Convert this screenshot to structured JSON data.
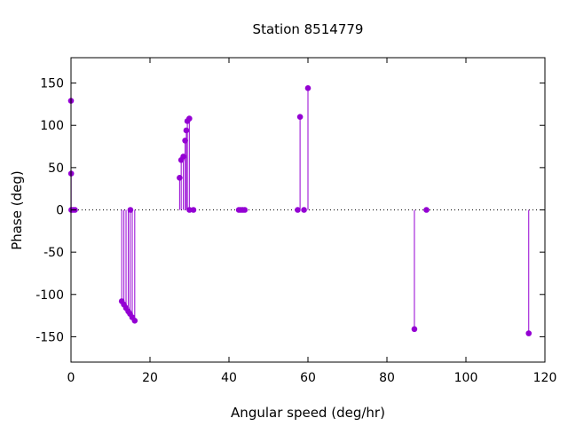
{
  "chart_data": {
    "type": "scatter",
    "style": "impulses-with-points",
    "title": "Station 8514779",
    "xlabel": "Angular speed (deg/hr)",
    "ylabel": "Phase (deg)",
    "xlim": [
      0,
      120
    ],
    "ylim": [
      -180,
      180
    ],
    "x_ticks": [
      0,
      20,
      40,
      60,
      80,
      100,
      120
    ],
    "y_ticks": [
      -150,
      -100,
      -50,
      0,
      50,
      100,
      150
    ],
    "zero_line": "dotted",
    "grid": false,
    "legend": "none",
    "series_color": "#9400d3",
    "points": [
      {
        "x": 0.0,
        "y": 129
      },
      {
        "x": 0.04,
        "y": 43
      },
      {
        "x": 0.08,
        "y": 0
      },
      {
        "x": 0.5,
        "y": 0
      },
      {
        "x": 1.0,
        "y": 0
      },
      {
        "x": 12.85,
        "y": -108
      },
      {
        "x": 13.4,
        "y": -112
      },
      {
        "x": 13.94,
        "y": -116
      },
      {
        "x": 14.5,
        "y": -120
      },
      {
        "x": 14.96,
        "y": -123
      },
      {
        "x": 15.04,
        "y": 0
      },
      {
        "x": 15.5,
        "y": -127
      },
      {
        "x": 16.14,
        "y": -131
      },
      {
        "x": 27.5,
        "y": 38
      },
      {
        "x": 27.9,
        "y": 59
      },
      {
        "x": 28.44,
        "y": 63
      },
      {
        "x": 28.9,
        "y": 82
      },
      {
        "x": 29.2,
        "y": 94
      },
      {
        "x": 29.46,
        "y": 105
      },
      {
        "x": 29.96,
        "y": 108
      },
      {
        "x": 30.0,
        "y": 0
      },
      {
        "x": 31.0,
        "y": 0
      },
      {
        "x": 42.5,
        "y": 0
      },
      {
        "x": 43.0,
        "y": 0
      },
      {
        "x": 43.5,
        "y": 0
      },
      {
        "x": 44.0,
        "y": 0
      },
      {
        "x": 57.4,
        "y": 0
      },
      {
        "x": 58.0,
        "y": 110
      },
      {
        "x": 59.0,
        "y": 0
      },
      {
        "x": 60.0,
        "y": 144
      },
      {
        "x": 86.95,
        "y": -141
      },
      {
        "x": 90.0,
        "y": 0
      },
      {
        "x": 115.9,
        "y": -146
      }
    ]
  }
}
